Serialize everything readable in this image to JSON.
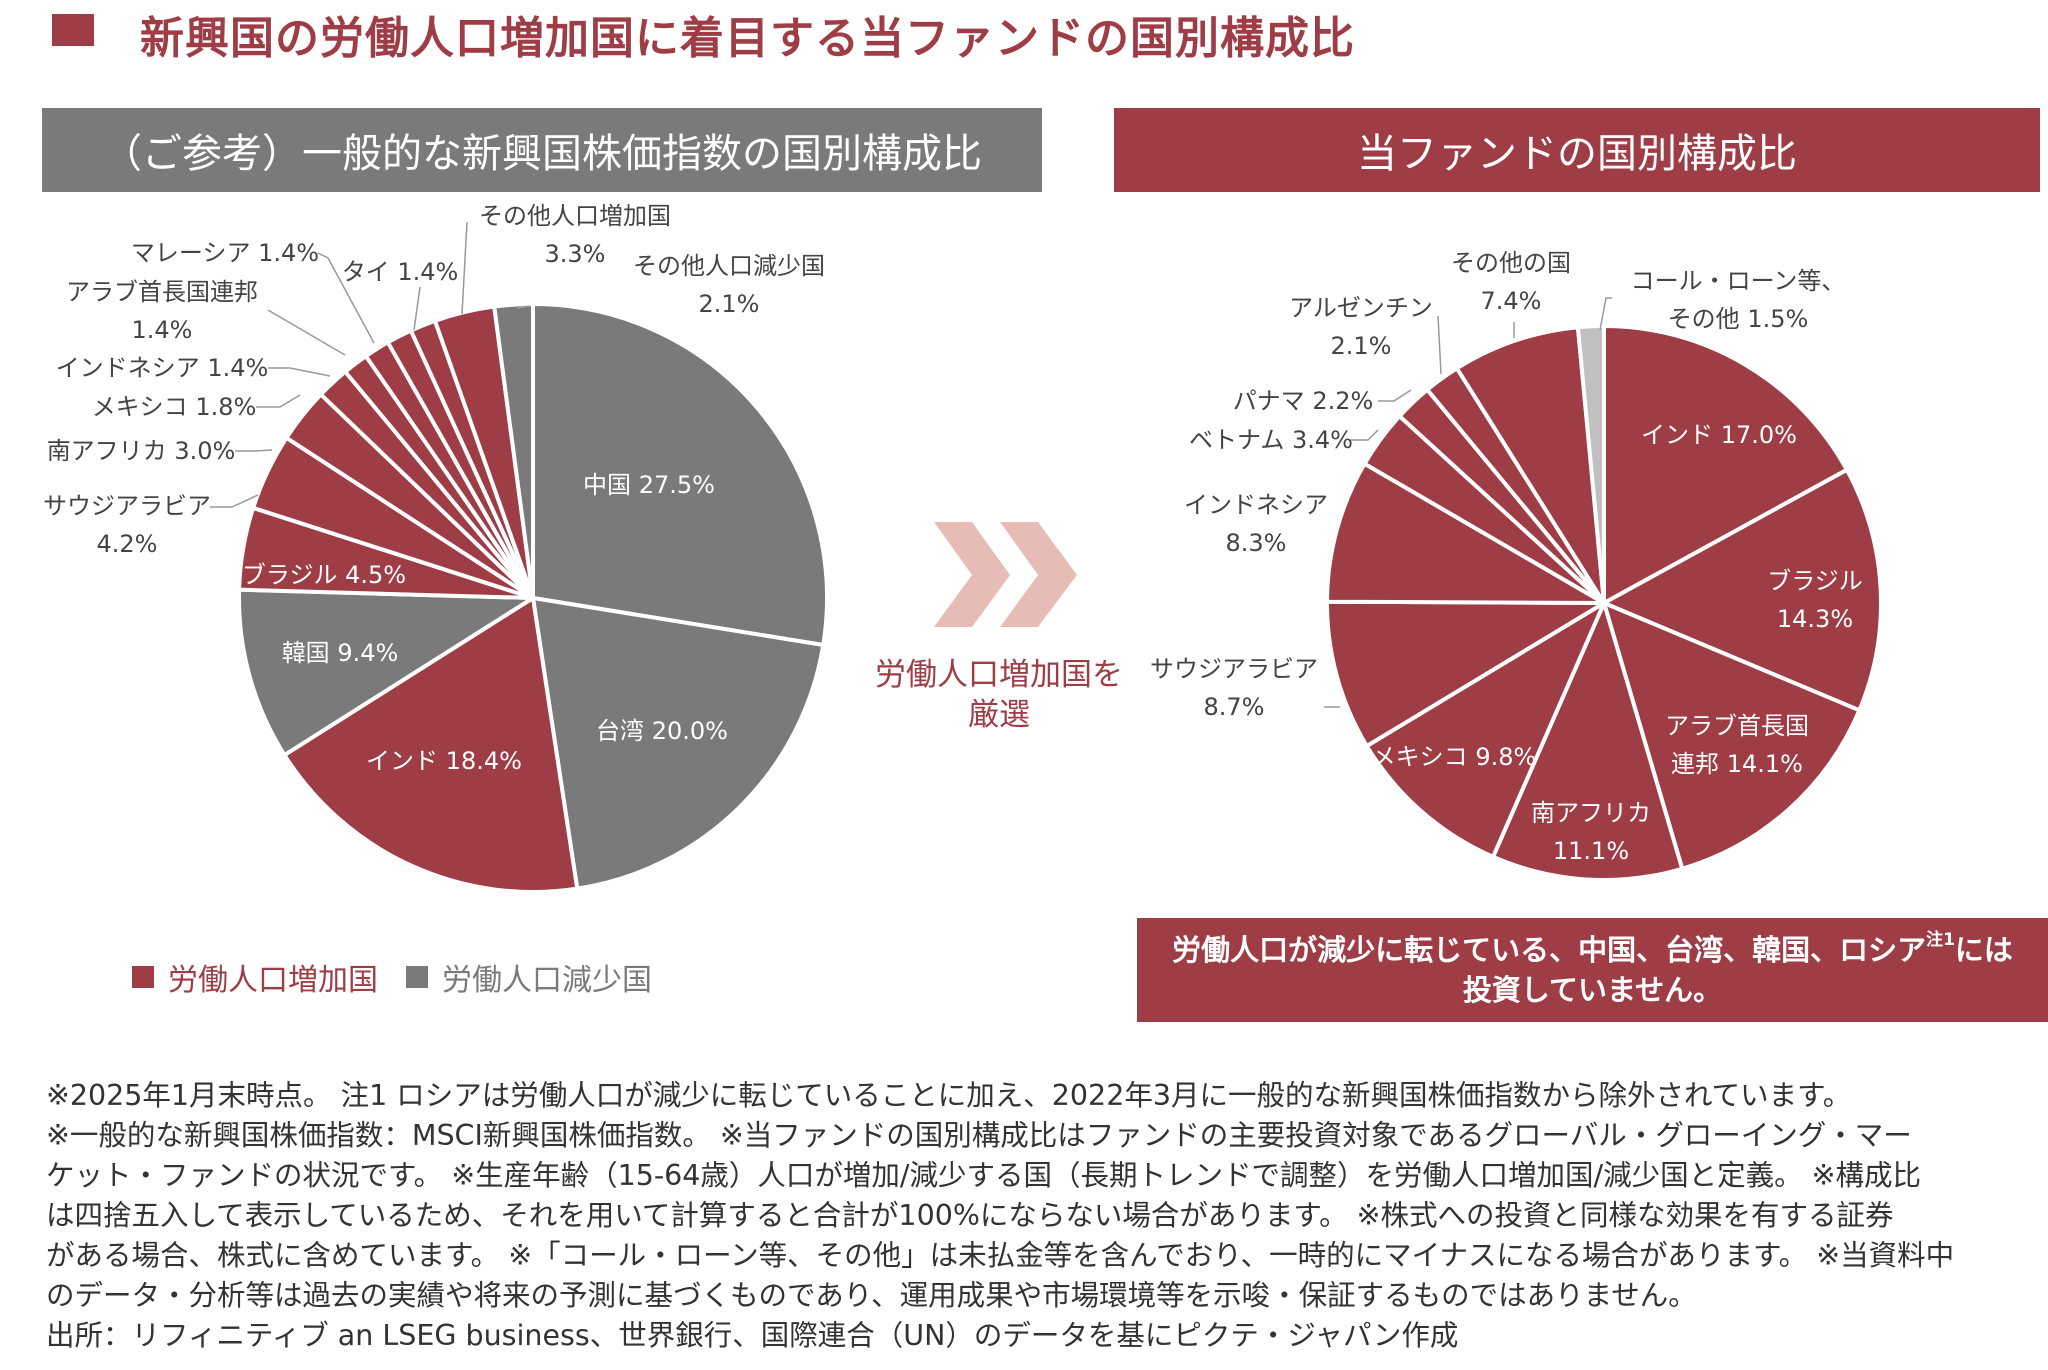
{
  "title": "新興国の労働人口増加国に着目する当ファンドの国別構成比",
  "colors": {
    "increase": "#9e3d45",
    "decrease": "#7a7a7a",
    "cash": "#c0c0c0",
    "arrow": "#e8bcb6"
  },
  "middle_text": [
    "労働人口増加国を",
    "厳選"
  ],
  "legend": [
    {
      "label": "労働人口増加国",
      "color": "#9e3d45"
    },
    {
      "label": "労働人口減少国",
      "color": "#7a7a7a"
    }
  ],
  "note": {
    "text": "労働人口が減少に転じている、中国、台湾、韓国、ロシア",
    "sup": "注1",
    "tail": "には",
    "line2": "投資していません。"
  },
  "footnotes": [
    "※2025年1月末時点。 注1 ロシアは労働人口が減少に転じていることに加え、2022年3月に一般的な新興国株価指数から除外されています。",
    "※一般的な新興国株価指数：MSCI新興国株価指数。 ※当ファンドの国別構成比はファンドの主要投資対象であるグローバル・グローイング・マー",
    "ケット・ファンドの状況です。 ※生産年齢（15-64歳）人口が増加/減少する国（長期トレンドで調整）を労働人口増加国/減少国と定義。 ※構成比",
    "は四捨五入して表示しているため、それを用いて計算すると合計が100%にならない場合があります。 ※株式への投資と同様な効果を有する証券",
    "がある場合、株式に含めています。 ※「コール・ローン等、その他」は未払金等を含んでおり、一時的にマイナスになる場合があります。 ※当資料中",
    "のデータ・分析等は過去の実績や将来の予測に基づくものであり、運用成果や市場環境等を示唆・保証するものではありません。",
    "出所：リフィニティブ an LSEG business、世界銀行、国際連合（UN）のデータを基にピクテ・ジャパン作成"
  ],
  "chart_data": [
    {
      "type": "pie",
      "title": "（ご参考）一般的な新興国株価指数の国別構成比",
      "start": "12 o'clock, clockwise",
      "unit": "%",
      "categories": [
        "中国",
        "台湾",
        "インド",
        "韓国",
        "ブラジル",
        "サウジアラビア",
        "南アフリカ",
        "メキシコ",
        "インドネシア",
        "アラブ首長国連邦",
        "マレーシア",
        "タイ",
        "その他人口増加国",
        "その他人口減少国"
      ],
      "values": [
        27.5,
        20.0,
        18.4,
        9.4,
        4.5,
        4.2,
        3.0,
        1.8,
        1.4,
        1.4,
        1.4,
        1.4,
        3.3,
        2.1
      ],
      "groups": [
        "decrease",
        "decrease",
        "increase",
        "decrease",
        "increase",
        "increase",
        "increase",
        "increase",
        "increase",
        "increase",
        "increase",
        "increase",
        "increase",
        "decrease"
      ],
      "value_labels": [
        "27.5%",
        "20.0%",
        "18.4%",
        "9.4%",
        "4.5%",
        "4.2%",
        "3.0%",
        "1.8%",
        "1.4%",
        "1.4%",
        "1.4%",
        "1.4%",
        "3.3%",
        "2.1%"
      ]
    },
    {
      "type": "pie",
      "title": "当ファンドの国別構成比",
      "start": "12 o'clock, clockwise",
      "unit": "%",
      "categories": [
        "インド",
        "ブラジル",
        "アラブ首長国連邦",
        "南アフリカ",
        "メキシコ",
        "サウジアラビア",
        "インドネシア",
        "ベトナム",
        "パナマ",
        "アルゼンチン",
        "その他の国",
        "コール・ローン等、その他"
      ],
      "label_lines": [
        [
          "インド"
        ],
        [
          "ブラジル"
        ],
        [
          "アラブ首長国",
          "連邦"
        ],
        [
          "南アフリカ"
        ],
        [
          "メキシコ"
        ],
        [
          "サウジアラビア"
        ],
        [
          "インドネシア"
        ],
        [
          "ベトナム"
        ],
        [
          "パナマ"
        ],
        [
          "アルゼンチン"
        ],
        [
          "その他の国"
        ],
        [
          "コール・ローン等、",
          "その他"
        ]
      ],
      "values": [
        17.0,
        14.3,
        14.1,
        11.1,
        9.8,
        8.7,
        8.3,
        3.4,
        2.2,
        2.1,
        7.4,
        1.5
      ],
      "groups": [
        "increase",
        "increase",
        "increase",
        "increase",
        "increase",
        "increase",
        "increase",
        "increase",
        "increase",
        "increase",
        "increase",
        "cash"
      ],
      "value_labels": [
        "17.0%",
        "14.3%",
        "14.1%",
        "11.1%",
        "9.8%",
        "8.7%",
        "8.3%",
        "3.4%",
        "2.2%",
        "2.1%",
        "7.4%",
        "1.5%"
      ]
    }
  ]
}
